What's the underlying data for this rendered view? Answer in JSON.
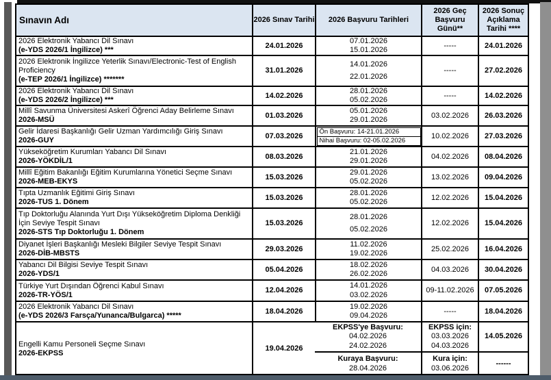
{
  "header": {
    "col_exam_name": "Sınavın Adı",
    "col_exam_date": "2026 Sınav Tarihi",
    "col_application_dates": "2026 Başvuru Tarihleri",
    "col_late_application": "2026 Geç Başvuru Günü**",
    "col_result_date": "2026 Sonuç Açıklama Tarihi ****"
  },
  "rows": [
    {
      "name_line1": "2026 Elektronik Yabancı Dil Sınavı",
      "name_line2": "(e-YDS 2026/1 İngilizce) ***",
      "exam_date": "24.01.2026",
      "application_dates": [
        "07.01.2026",
        "15.01.2026"
      ],
      "late_application": "-----",
      "result_date": "24.01.2026"
    },
    {
      "name_line1": "2026  Elektronik İngilizce Yeterlik Sınavı/Electronic-Test of English Proficiency",
      "name_line2": "(e-TEP 2026/1 İngilizce) *******",
      "exam_date": "31.01.2026",
      "application_dates": [
        "14.01.2026",
        "22.01.2026"
      ],
      "late_application": "-----",
      "result_date": "27.02.2026"
    },
    {
      "name_line1": "2026 Elektronik Yabancı Dil Sınavı",
      "name_line2": "(e-YDS 2026/2 İngilizce) ***",
      "exam_date": "14.02.2026",
      "application_dates": [
        "28.01.2026",
        "05.02.2026"
      ],
      "late_application": "-----",
      "result_date": "14.02.2026"
    },
    {
      "name_line1": "Millî Savunma Üniversitesi Askerî Öğrenci Aday Belirleme Sınavı",
      "name_line2": "2026-MSÜ",
      "exam_date": "01.03.2026",
      "application_dates": [
        "05.01.2026",
        "29.01.2026"
      ],
      "late_application": "03.02.2026",
      "result_date": "26.03.2026"
    },
    {
      "name_line1": "Gelir İdaresi Başkanlığı Gelir Uzman Yardımcılığı Giriş Sınavı",
      "name_line2": "2026-GUY",
      "exam_date": "07.03.2026",
      "application_dates": [
        "Ön Başvuru: 14-21.01.2026",
        "Nihai Başvuru: 02-05.02.2026"
      ],
      "late_application": "10.02.2026",
      "result_date": "27.03.2026"
    },
    {
      "name_line1": "Yükseköğretim Kurumları Yabancı Dil Sınavı",
      "name_line2": "2026-YÖKDİL/1",
      "exam_date": "08.03.2026",
      "application_dates": [
        "21.01.2026",
        "29.01.2026"
      ],
      "late_application": "04.02.2026",
      "result_date": "08.04.2026"
    },
    {
      "name_line1": "Millî Eğitim Bakanlığı Eğitim Kurumlarına Yönetici Seçme Sınavı",
      "name_line2": "2026-MEB-EKYS",
      "exam_date": "15.03.2026",
      "application_dates": [
        "29.01.2026",
        "05.02.2026"
      ],
      "late_application": "13.02.2026",
      "result_date": "09.04.2026"
    },
    {
      "name_line1": "Tıpta Uzmanlık Eğitimi Giriş Sınavı",
      "name_line2": "2026-TUS 1. Dönem",
      "exam_date": "15.03.2026",
      "application_dates": [
        "28.01.2026",
        "05.02.2026"
      ],
      "late_application": "12.02.2026",
      "result_date": "15.04.2026"
    },
    {
      "name_line1": "Tıp Doktorluğu Alanında Yurt Dışı Yükseköğretim Diploma Denkliği İçin Seviye Tespit Sınavı",
      "name_line2": "2026-STS Tıp Doktorluğu 1. Dönem",
      "exam_date": "15.03.2026",
      "application_dates": [
        "28.01.2026",
        "05.02.2026"
      ],
      "late_application": "12.02.2026",
      "result_date": "15.04.2026"
    },
    {
      "name_line1": "Diyanet İşleri Başkanlığı Mesleki Bilgiler Seviye Tespit Sınavı",
      "name_line2": "2026-DİB-MBSTS",
      "exam_date": "29.03.2026",
      "application_dates": [
        "11.02.2026",
        "19.02.2026"
      ],
      "late_application": "25.02.2026",
      "result_date": "16.04.2026"
    },
    {
      "name_line1": "Yabancı Dil Bilgisi Seviye Tespit Sınavı",
      "name_line2": "2026-YDS/1",
      "exam_date": "05.04.2026",
      "application_dates": [
        "18.02.2026",
        "26.02.2026"
      ],
      "late_application": "04.03.2026",
      "result_date": "30.04.2026"
    },
    {
      "name_line1": "Türkiye Yurt Dışından Öğrenci Kabul Sınavı",
      "name_line2": "2026-TR-YÖS/1",
      "exam_date": "12.04.2026",
      "application_dates": [
        "14.01.2026",
        "03.02.2026"
      ],
      "late_application": "09-11.02.2026",
      "result_date": "07.05.2026"
    },
    {
      "name_line1": "2026 Elektronik Yabancı Dil Sınavı",
      "name_line2": "(e-YDS 2026/3 Farsça/Yunanca/Bulgarca) *****",
      "exam_date": "18.04.2026",
      "application_dates": [
        "19.02.2026",
        "09.04.2026"
      ],
      "late_application": "-----",
      "result_date": "18.04.2026"
    }
  ],
  "ekpss": {
    "name_line1": "Engelli Kamu Personeli Seçme Sınavı",
    "name_line2": "2026-EKPSS",
    "exam_date": "19.04.2026",
    "application_top_label": "EKPSS'ye Başvuru:",
    "application_top_dates": [
      "04.02.2026",
      "24.02.2026"
    ],
    "application_bottom_label": "Kuraya Başvuru:",
    "application_bottom_date": "28.04.2026",
    "late_top_label": "EKPSS için:",
    "late_top_dates": [
      "03.03.2026",
      "04.03.2026"
    ],
    "late_bottom_label": "Kura için:",
    "late_bottom_date": "03.06.2026",
    "result_top": "14.05.2026",
    "result_bottom": "------"
  }
}
